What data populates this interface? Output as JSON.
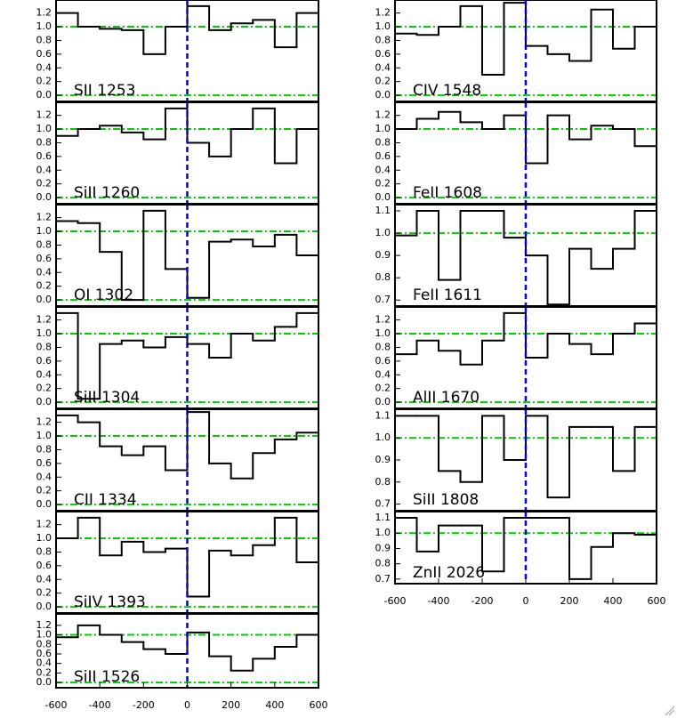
{
  "chart_data": [
    {
      "type": "line",
      "title": "SII 1253",
      "x": [
        -550,
        -450,
        -350,
        -250,
        -150,
        -50,
        50,
        150,
        250,
        350,
        450,
        550
      ],
      "values": [
        1.2,
        1.0,
        0.97,
        0.95,
        0.6,
        1.0,
        1.3,
        0.95,
        1.05,
        1.1,
        0.7,
        1.2
      ],
      "color": "#000000",
      "xlim": [
        -600,
        600
      ],
      "ylim": [
        -0.09,
        1.39
      ],
      "yticks": [
        {
          "value": 0,
          "label": "0.0"
        },
        0.2,
        0.4,
        0.6,
        0.8,
        {
          "value": 1,
          "label": "1.0"
        },
        1.2
      ],
      "reference_lines": [
        0,
        1
      ],
      "reference_color": "#00cc00",
      "vline": 0,
      "vline_color": "#0000dd"
    },
    {
      "type": "line",
      "title": "SiII 1260",
      "x": [
        -550,
        -450,
        -350,
        -250,
        -150,
        -50,
        50,
        150,
        250,
        350,
        450,
        550
      ],
      "values": [
        0.9,
        1.0,
        1.05,
        0.95,
        0.85,
        1.3,
        0.8,
        0.6,
        1.0,
        1.3,
        0.5,
        1.0
      ],
      "color": "#000000",
      "xlim": [
        -600,
        600
      ],
      "ylim": [
        -0.09,
        1.39
      ],
      "yticks": [
        {
          "value": 0,
          "label": "0.0"
        },
        0.2,
        0.4,
        0.6,
        0.8,
        {
          "value": 1,
          "label": "1.0"
        },
        1.2
      ],
      "reference_lines": [
        0,
        1
      ],
      "reference_color": "#00cc00",
      "vline": 0,
      "vline_color": "#0000dd"
    },
    {
      "type": "line",
      "title": "OI 1302",
      "x": [
        -550,
        -450,
        -350,
        -250,
        -150,
        -50,
        50,
        150,
        250,
        350,
        450,
        550
      ],
      "values": [
        1.15,
        1.12,
        0.7,
        0.0,
        1.3,
        0.45,
        0.03,
        0.85,
        0.88,
        0.78,
        0.95,
        0.65
      ],
      "color": "#000000",
      "xlim": [
        -600,
        600
      ],
      "ylim": [
        -0.09,
        1.39
      ],
      "yticks": [
        {
          "value": 0,
          "label": "0.0"
        },
        0.2,
        0.4,
        0.6,
        0.8,
        {
          "value": 1,
          "label": "1.0"
        },
        1.2
      ],
      "reference_lines": [
        0,
        1
      ],
      "reference_color": "#00cc00",
      "vline": 0,
      "vline_color": "#0000dd"
    },
    {
      "type": "line",
      "title": "SiII 1304",
      "x": [
        -550,
        -450,
        -350,
        -250,
        -150,
        -50,
        50,
        150,
        250,
        350,
        450,
        550
      ],
      "values": [
        1.3,
        0.05,
        0.85,
        0.9,
        0.8,
        0.95,
        0.85,
        0.65,
        1.0,
        0.9,
        1.1,
        1.3
      ],
      "color": "#000000",
      "xlim": [
        -600,
        600
      ],
      "ylim": [
        -0.09,
        1.39
      ],
      "yticks": [
        {
          "value": 0,
          "label": "0.0"
        },
        0.2,
        0.4,
        0.6,
        0.8,
        {
          "value": 1,
          "label": "1.0"
        },
        1.2
      ],
      "reference_lines": [
        0,
        1
      ],
      "reference_color": "#00cc00",
      "vline": 0,
      "vline_color": "#0000dd"
    },
    {
      "type": "line",
      "title": "CII 1334",
      "x": [
        -550,
        -450,
        -350,
        -250,
        -150,
        -50,
        50,
        150,
        250,
        350,
        450,
        550
      ],
      "values": [
        1.3,
        1.2,
        0.85,
        0.72,
        0.85,
        0.5,
        1.35,
        0.6,
        0.38,
        0.75,
        0.95,
        1.05
      ],
      "color": "#000000",
      "xlim": [
        -600,
        600
      ],
      "ylim": [
        -0.09,
        1.39
      ],
      "yticks": [
        {
          "value": 0,
          "label": "0.0"
        },
        0.2,
        0.4,
        0.6,
        0.8,
        {
          "value": 1,
          "label": "1.0"
        },
        1.2
      ],
      "reference_lines": [
        0,
        1
      ],
      "reference_color": "#00cc00",
      "vline": 0,
      "vline_color": "#0000dd"
    },
    {
      "type": "line",
      "title": "SiIV 1393",
      "x": [
        -550,
        -450,
        -350,
        -250,
        -150,
        -50,
        50,
        150,
        250,
        350,
        450,
        550
      ],
      "values": [
        1.0,
        1.3,
        0.75,
        0.95,
        0.8,
        0.85,
        0.15,
        0.82,
        0.75,
        0.9,
        1.3,
        0.65
      ],
      "color": "#000000",
      "xlim": [
        -600,
        600
      ],
      "ylim": [
        -0.09,
        1.39
      ],
      "yticks": [
        {
          "value": 0,
          "label": "0.0"
        },
        0.2,
        0.4,
        0.6,
        0.8,
        {
          "value": 1,
          "label": "1.0"
        },
        1.2
      ],
      "reference_lines": [
        0,
        1
      ],
      "reference_color": "#00cc00",
      "vline": 0,
      "vline_color": "#0000dd"
    },
    {
      "type": "line",
      "title": "SiII 1526",
      "x": [
        -550,
        -450,
        -350,
        -250,
        -150,
        -50,
        50,
        150,
        250,
        350,
        450,
        550
      ],
      "values": [
        0.95,
        1.2,
        1.0,
        0.85,
        0.7,
        0.6,
        1.05,
        0.55,
        0.25,
        0.5,
        0.75,
        1.0
      ],
      "color": "#000000",
      "xlim": [
        -600,
        600
      ],
      "ylim": [
        -0.11,
        1.44
      ],
      "yticks": [
        {
          "value": 0,
          "label": "0.0"
        },
        0.2,
        0.4,
        0.6,
        0.8,
        {
          "value": 1,
          "label": "1.0"
        },
        1.2
      ],
      "reference_lines": [
        0,
        1
      ],
      "reference_color": "#00cc00",
      "vline": 0,
      "vline_color": "#0000dd",
      "xticks": [
        -600,
        -400,
        -200,
        0,
        200,
        400,
        600
      ]
    },
    {
      "type": "line",
      "title": "CIV 1548",
      "x": [
        -550,
        -450,
        -350,
        -250,
        -150,
        -50,
        50,
        150,
        250,
        350,
        450,
        550
      ],
      "values": [
        0.9,
        0.88,
        1.0,
        1.3,
        0.3,
        1.35,
        0.72,
        0.6,
        0.5,
        1.25,
        0.68,
        1.0
      ],
      "color": "#000000",
      "xlim": [
        -600,
        600
      ],
      "ylim": [
        -0.09,
        1.39
      ],
      "yticks": [
        {
          "value": 0,
          "label": "0.0"
        },
        0.2,
        0.4,
        0.6,
        0.8,
        {
          "value": 1,
          "label": "1.0"
        },
        1.2
      ],
      "reference_lines": [
        0,
        1
      ],
      "reference_color": "#00cc00",
      "vline": 0,
      "vline_color": "#0000dd"
    },
    {
      "type": "line",
      "title": "FeII 1608",
      "x": [
        -550,
        -450,
        -350,
        -250,
        -150,
        -50,
        50,
        150,
        250,
        350,
        450,
        550
      ],
      "values": [
        1.0,
        1.15,
        1.25,
        1.1,
        1.0,
        1.2,
        0.5,
        1.2,
        0.85,
        1.05,
        1.0,
        0.75
      ],
      "color": "#000000",
      "xlim": [
        -600,
        600
      ],
      "ylim": [
        -0.09,
        1.39
      ],
      "yticks": [
        {
          "value": 0,
          "label": "0.0"
        },
        0.2,
        0.4,
        0.6,
        0.8,
        {
          "value": 1,
          "label": "1.0"
        },
        1.2
      ],
      "reference_lines": [
        0,
        1
      ],
      "reference_color": "#00cc00",
      "vline": 0,
      "vline_color": "#0000dd"
    },
    {
      "type": "line",
      "title": "FeII 1611",
      "x": [
        -550,
        -450,
        -350,
        -250,
        -150,
        -50,
        50,
        150,
        250,
        350,
        450,
        550
      ],
      "values": [
        0.99,
        1.1,
        0.79,
        1.1,
        1.1,
        0.98,
        0.9,
        0.68,
        0.93,
        0.84,
        0.93,
        1.1
      ],
      "color": "#000000",
      "xlim": [
        -600,
        600
      ],
      "ylim": [
        0.673,
        1.128
      ],
      "yticks": [
        0.7,
        0.8,
        0.9,
        {
          "value": 1,
          "label": "1.0"
        },
        1.1
      ],
      "reference_lines": [
        1
      ],
      "reference_color": "#00cc00",
      "vline": 0,
      "vline_color": "#0000dd"
    },
    {
      "type": "line",
      "title": "AlII 1670",
      "x": [
        -550,
        -450,
        -350,
        -250,
        -150,
        -50,
        50,
        150,
        250,
        350,
        450,
        550
      ],
      "values": [
        0.7,
        0.9,
        0.75,
        0.55,
        0.9,
        1.3,
        0.65,
        1.0,
        0.85,
        0.7,
        1.0,
        1.15
      ],
      "color": "#000000",
      "xlim": [
        -600,
        600
      ],
      "ylim": [
        -0.09,
        1.39
      ],
      "yticks": [
        {
          "value": 0,
          "label": "0.0"
        },
        0.2,
        0.4,
        0.6,
        0.8,
        {
          "value": 1,
          "label": "1.0"
        },
        1.2
      ],
      "reference_lines": [
        0,
        1
      ],
      "reference_color": "#00cc00",
      "vline": 0,
      "vline_color": "#0000dd"
    },
    {
      "type": "line",
      "title": "SiII 1808",
      "x": [
        -550,
        -450,
        -350,
        -250,
        -150,
        -50,
        50,
        150,
        250,
        350,
        450,
        550
      ],
      "values": [
        1.1,
        1.1,
        0.85,
        0.8,
        1.1,
        0.9,
        1.1,
        0.73,
        1.05,
        1.05,
        0.85,
        1.05
      ],
      "color": "#000000",
      "xlim": [
        -600,
        600
      ],
      "ylim": [
        0.67,
        1.13
      ],
      "yticks": [
        0.7,
        0.8,
        0.9,
        {
          "value": 1,
          "label": "1.0"
        },
        1.1
      ],
      "reference_lines": [
        1
      ],
      "reference_color": "#00cc00",
      "vline": 0,
      "vline_color": "#0000dd"
    },
    {
      "type": "line",
      "title": "ZnII 2026",
      "x": [
        -550,
        -450,
        -350,
        -250,
        -150,
        -50,
        50,
        150,
        250,
        350,
        450,
        550
      ],
      "values": [
        1.1,
        0.88,
        1.05,
        1.05,
        0.75,
        1.1,
        1.1,
        1.1,
        0.7,
        0.91,
        1.0,
        0.99
      ],
      "color": "#000000",
      "xlim": [
        -600,
        600
      ],
      "ylim": [
        0.67,
        1.141
      ],
      "yticks": [
        0.7,
        0.8,
        0.9,
        {
          "value": 1,
          "label": "1.0"
        },
        1.1
      ],
      "reference_lines": [
        1
      ],
      "reference_color": "#00cc00",
      "vline": 0,
      "vline_color": "#0000dd",
      "xticks": [
        -600,
        -400,
        -200,
        0,
        200,
        400,
        600
      ]
    }
  ]
}
